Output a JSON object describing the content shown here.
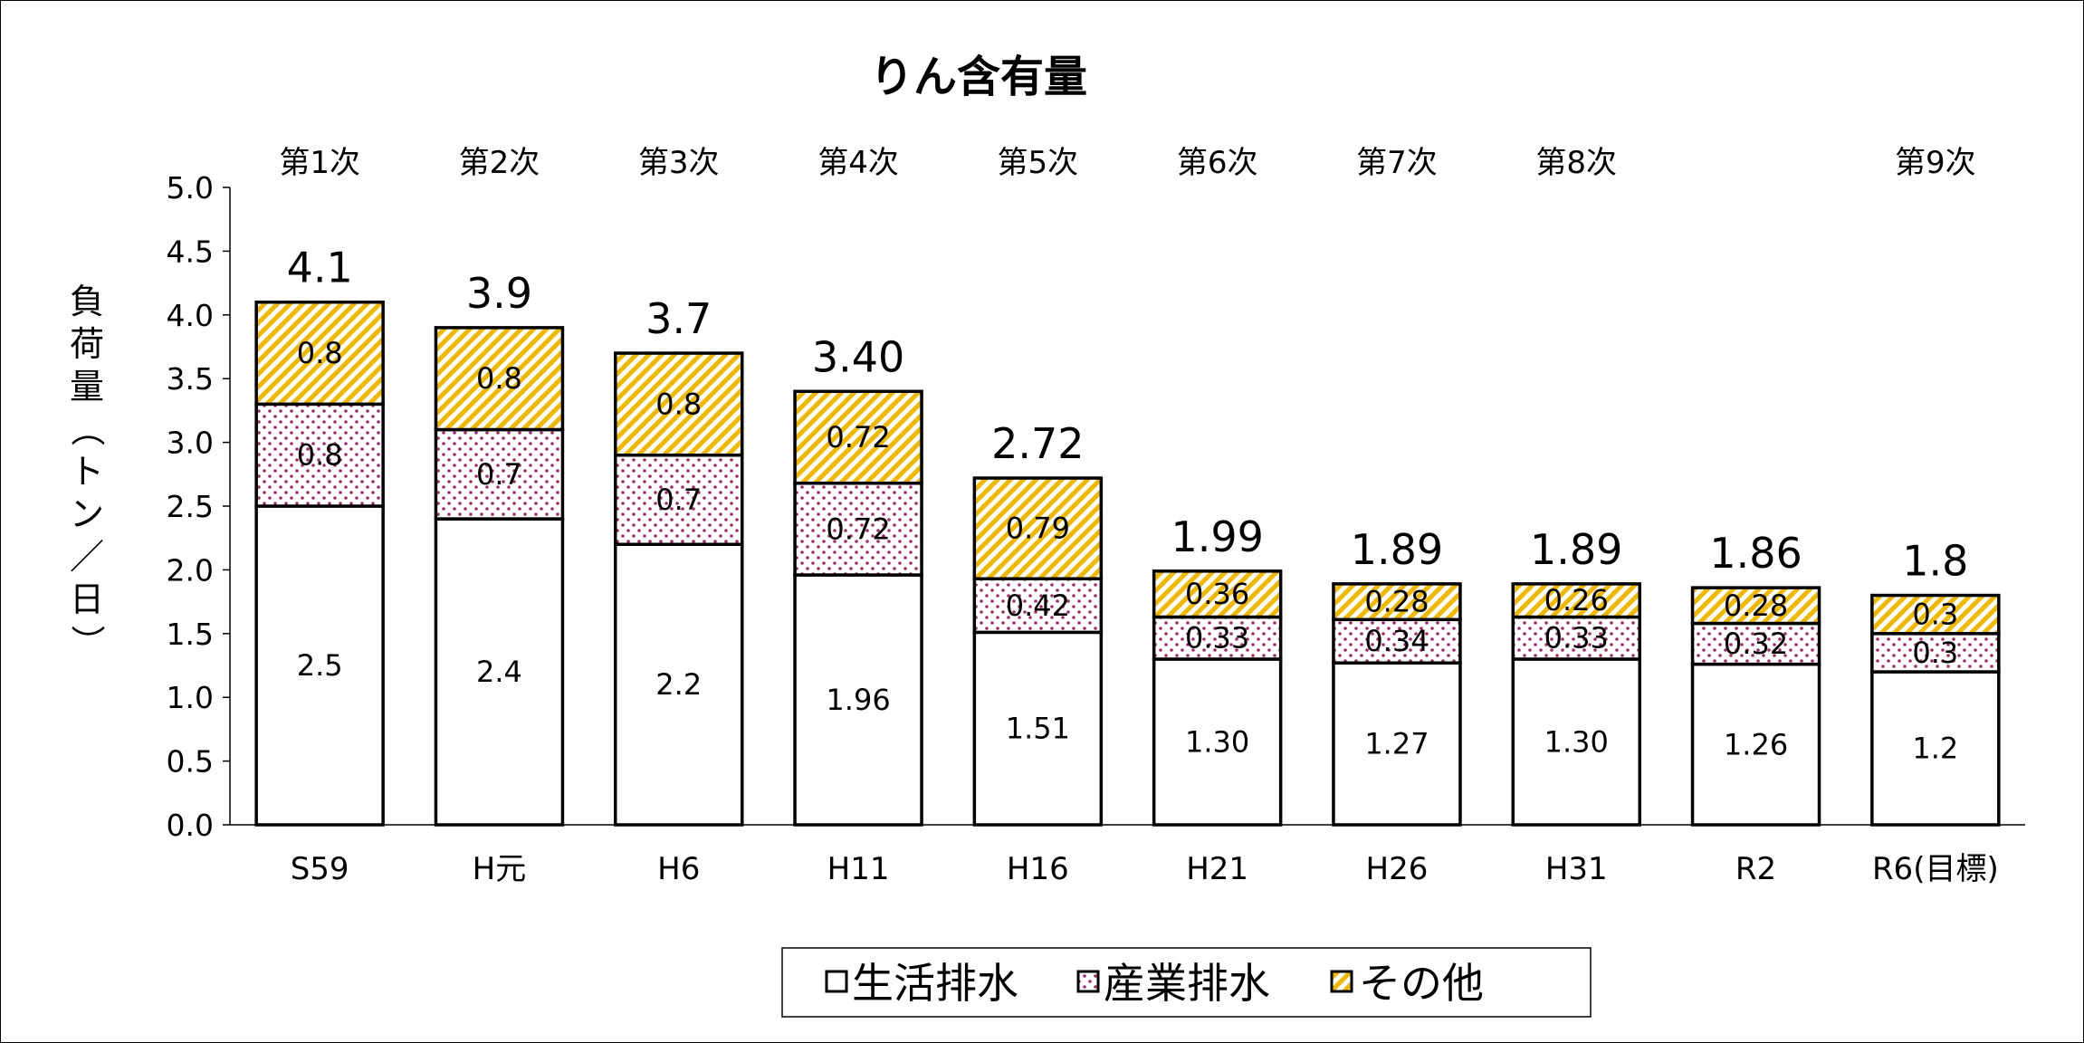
{
  "chart_data": {
    "type": "bar",
    "stacked": true,
    "title": "りん含有量",
    "ylabel": "負荷量（トン／日）",
    "xlabel": "",
    "ylim": [
      0,
      5.0
    ],
    "yticks": [
      "0.0",
      "0.5",
      "1.0",
      "1.5",
      "2.0",
      "2.5",
      "3.0",
      "3.5",
      "4.0",
      "4.5",
      "5.0"
    ],
    "categories": [
      "S59",
      "H元",
      "H6",
      "H11",
      "H16",
      "H21",
      "H26",
      "H31",
      "R2",
      "R6(目標)"
    ],
    "phases": [
      "第1次",
      "第2次",
      "第3次",
      "第4次",
      "第5次",
      "第6次",
      "第7次",
      "第8次",
      "",
      "第9次"
    ],
    "totals": [
      "4.1",
      "3.9",
      "3.7",
      "3.40",
      "2.72",
      "1.99",
      "1.89",
      "1.89",
      "1.86",
      "1.8"
    ],
    "series": [
      {
        "name": "生活排水",
        "values": [
          2.5,
          2.4,
          2.2,
          1.96,
          1.51,
          1.3,
          1.27,
          1.3,
          1.26,
          1.2
        ],
        "labels": [
          "2.5",
          "2.4",
          "2.2",
          "1.96",
          "1.51",
          "1.30",
          "1.27",
          "1.30",
          "1.26",
          "1.2"
        ]
      },
      {
        "name": "産業排水",
        "values": [
          0.8,
          0.7,
          0.7,
          0.72,
          0.42,
          0.33,
          0.34,
          0.33,
          0.32,
          0.3
        ],
        "labels": [
          "0.8",
          "0.7",
          "0.7",
          "0.72",
          "0.42",
          "0.33",
          "0.34",
          "0.33",
          "0.32",
          "0.3"
        ]
      },
      {
        "name": "その他",
        "values": [
          0.8,
          0.8,
          0.8,
          0.72,
          0.79,
          0.36,
          0.28,
          0.26,
          0.28,
          0.3
        ],
        "labels": [
          "0.8",
          "0.8",
          "0.8",
          "0.72",
          "0.79",
          "0.36",
          "0.28",
          "0.26",
          "0.28",
          "0.3"
        ]
      }
    ],
    "legend": {
      "position": "bottom"
    }
  },
  "colors": {
    "residential_fill": "#ffffff",
    "industrial_dot": "#a0306a",
    "other_base": "#ffffff",
    "other_stripe": "#f0b800",
    "axis": "#000000"
  }
}
